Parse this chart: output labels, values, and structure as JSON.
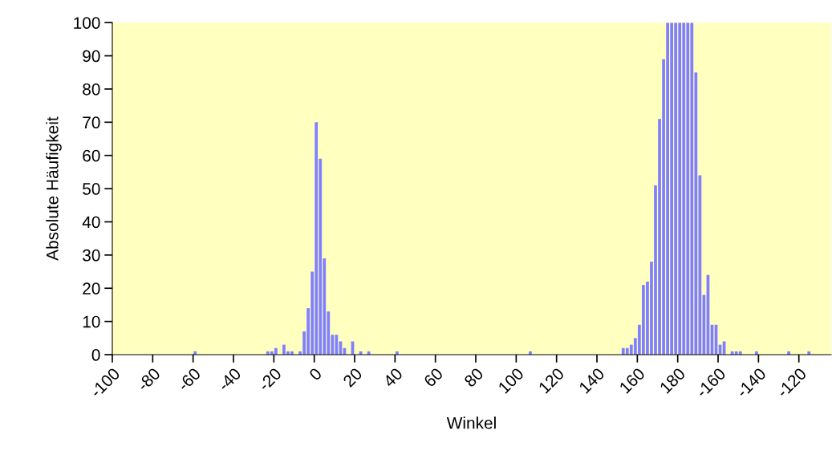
{
  "chart_data": {
    "type": "bar",
    "xlabel": "Winkel",
    "ylabel": "Absolute Häufigkeit",
    "categories": [
      "-100",
      null,
      null,
      null,
      null,
      null,
      null,
      null,
      null,
      null,
      "-80",
      null,
      null,
      null,
      null,
      null,
      null,
      null,
      null,
      null,
      "-60",
      null,
      null,
      null,
      null,
      null,
      null,
      null,
      null,
      null,
      "-40",
      null,
      null,
      null,
      null,
      null,
      null,
      null,
      null,
      null,
      "-20",
      null,
      null,
      null,
      null,
      null,
      null,
      null,
      null,
      null,
      "0",
      null,
      null,
      null,
      null,
      null,
      null,
      null,
      null,
      null,
      "20",
      null,
      null,
      null,
      null,
      null,
      null,
      null,
      null,
      null,
      "40",
      null,
      null,
      null,
      null,
      null,
      null,
      null,
      null,
      null,
      "60",
      null,
      null,
      null,
      null,
      null,
      null,
      null,
      null,
      null,
      "80",
      null,
      null,
      null,
      null,
      null,
      null,
      null,
      null,
      null,
      "100",
      null,
      null,
      null,
      null,
      null,
      null,
      null,
      null,
      null,
      "120",
      null,
      null,
      null,
      null,
      null,
      null,
      null,
      null,
      null,
      "140",
      null,
      null,
      null,
      null,
      null,
      null,
      null,
      null,
      null,
      "160",
      null,
      null,
      null,
      null,
      null,
      null,
      null,
      null,
      null,
      "180",
      null,
      null,
      null,
      null,
      null,
      null,
      null,
      null,
      null,
      "-160",
      null,
      null,
      null,
      null,
      null,
      null,
      null,
      null,
      null,
      "-140",
      null,
      null,
      null,
      null,
      null,
      null,
      null,
      null,
      null,
      "-120",
      null,
      null,
      null,
      null,
      null,
      null,
      null
    ],
    "values": [
      0,
      0,
      0,
      0,
      0,
      0,
      0,
      0,
      0,
      0,
      0,
      0,
      0,
      0,
      0,
      0,
      0,
      0,
      0,
      0,
      1,
      0,
      0,
      0,
      0,
      0,
      0,
      0,
      0,
      0,
      0,
      0,
      0,
      0,
      0,
      0,
      0,
      0,
      1,
      1,
      2,
      0,
      3,
      1,
      1,
      0,
      1,
      7,
      14,
      25,
      70,
      59,
      29,
      13,
      6,
      6,
      4,
      2,
      0,
      4,
      0,
      1,
      0,
      1,
      0,
      0,
      0,
      0,
      0,
      0,
      1,
      0,
      0,
      0,
      0,
      0,
      0,
      0,
      0,
      0,
      0,
      0,
      0,
      0,
      0,
      0,
      0,
      0,
      0,
      0,
      0,
      0,
      0,
      0,
      0,
      0,
      0,
      0,
      0,
      0,
      0,
      0,
      0,
      1,
      0,
      0,
      0,
      0,
      0,
      0,
      0,
      0,
      0,
      0,
      0,
      0,
      0,
      0,
      0,
      0,
      0,
      0,
      0,
      0,
      0,
      0,
      2,
      2,
      3,
      5,
      9,
      21,
      22,
      28,
      51,
      71,
      89,
      100,
      100,
      100,
      100,
      100,
      100,
      100,
      85,
      54,
      18,
      24,
      9,
      9,
      3,
      4,
      0,
      1,
      1,
      1,
      0,
      0,
      0,
      1,
      0,
      0,
      0,
      0,
      0,
      0,
      0,
      1,
      0,
      0,
      0,
      0,
      1,
      0,
      0,
      0,
      0,
      0
    ],
    "color": "#8080ff",
    "ylim": [
      0,
      100
    ],
    "yticks": [
      0,
      10,
      20,
      30,
      40,
      50,
      60,
      70,
      80,
      90,
      100
    ]
  }
}
